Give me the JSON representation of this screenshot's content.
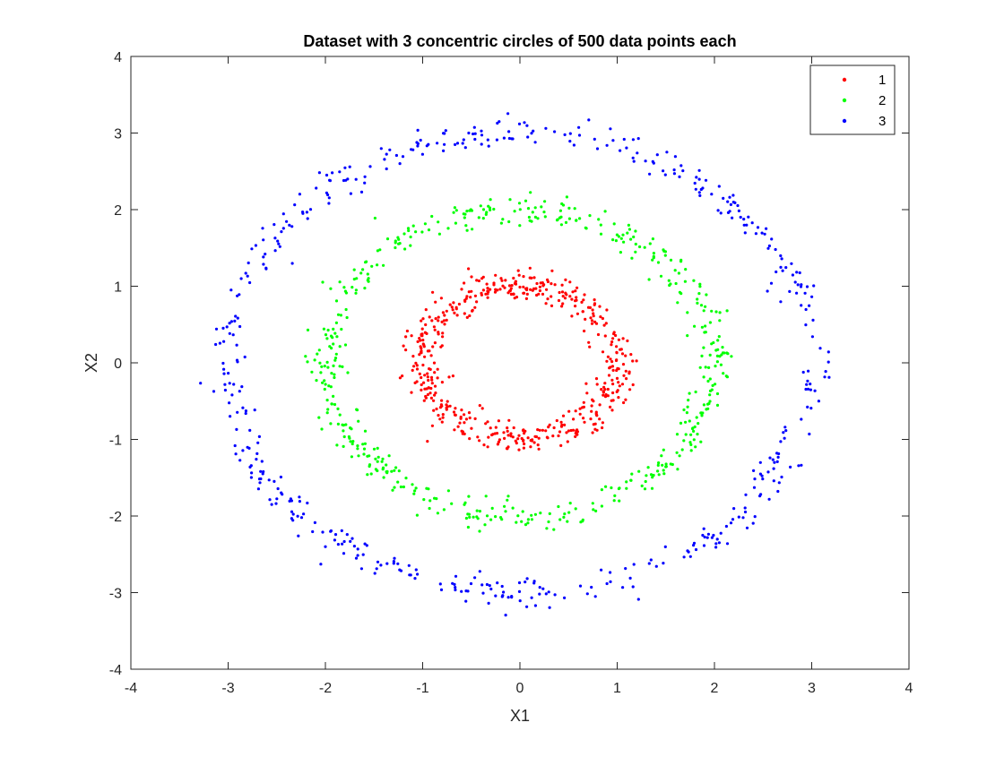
{
  "chart_data": {
    "type": "scatter",
    "title": "Dataset with 3 concentric circles of 500 data points each",
    "xlabel": "X1",
    "ylabel": "X2",
    "xlim": [
      -4,
      4
    ],
    "ylim": [
      -4,
      4
    ],
    "xticks": [
      -4,
      -3,
      -2,
      -1,
      0,
      1,
      2,
      3,
      4
    ],
    "yticks": [
      -4,
      -3,
      -2,
      -1,
      0,
      1,
      2,
      3,
      4
    ],
    "grid": false,
    "legend_position": "top-right",
    "series": [
      {
        "name": "1",
        "color": "#ff0000",
        "points_per_series": 500,
        "radius": 1.0,
        "noise": 0.1
      },
      {
        "name": "2",
        "color": "#00ff00",
        "points_per_series": 500,
        "radius": 2.0,
        "noise": 0.1
      },
      {
        "name": "3",
        "color": "#0000ff",
        "points_per_series": 500,
        "radius": 3.0,
        "noise": 0.1
      }
    ]
  }
}
